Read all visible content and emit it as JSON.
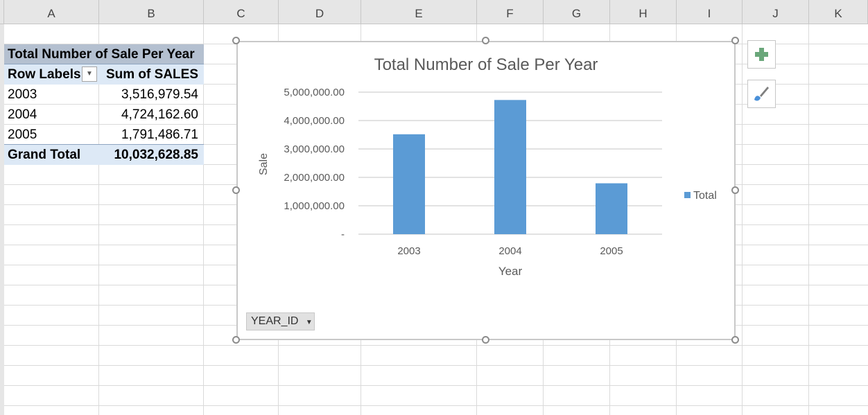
{
  "columns": [
    "A",
    "B",
    "C",
    "D",
    "E",
    "F",
    "G",
    "H",
    "I",
    "J",
    "K"
  ],
  "pivot": {
    "title": "Total Number of Sale Per Year",
    "header_row_labels": "Row Labels",
    "header_sum": "Sum of SALES",
    "rows": [
      {
        "label": "2003",
        "value": "3,516,979.54"
      },
      {
        "label": "2004",
        "value": "4,724,162.60"
      },
      {
        "label": "2005",
        "value": "1,791,486.71"
      }
    ],
    "grand_total_label": "Grand Total",
    "grand_total_value": "10,032,628.85"
  },
  "chart_field_button": "YEAR_ID",
  "icons": {
    "add_element": "plus-icon",
    "chart_styles": "paintbrush-icon",
    "filter": "dropdown-arrow-icon"
  },
  "colors": {
    "bar": "#5b9bd5",
    "pivot_title_bg": "#b4c0d0",
    "pivot_header_bg": "#dde9f6"
  },
  "chart_data": {
    "type": "bar",
    "title": "Total Number of Sale Per Year",
    "xlabel": "Year",
    "ylabel": "Sale",
    "categories": [
      "2003",
      "2004",
      "2005"
    ],
    "series": [
      {
        "name": "Total",
        "values": [
          3516979.54,
          4724162.6,
          1791486.71
        ]
      }
    ],
    "ylim": [
      0,
      5000000
    ],
    "yticks": [
      0,
      1000000,
      2000000,
      3000000,
      4000000,
      5000000
    ],
    "ytick_labels": [
      "-",
      "1,000,000.00",
      "2,000,000.00",
      "3,000,000.00",
      "4,000,000.00",
      "5,000,000.00"
    ],
    "grid": true,
    "legend": "right"
  }
}
